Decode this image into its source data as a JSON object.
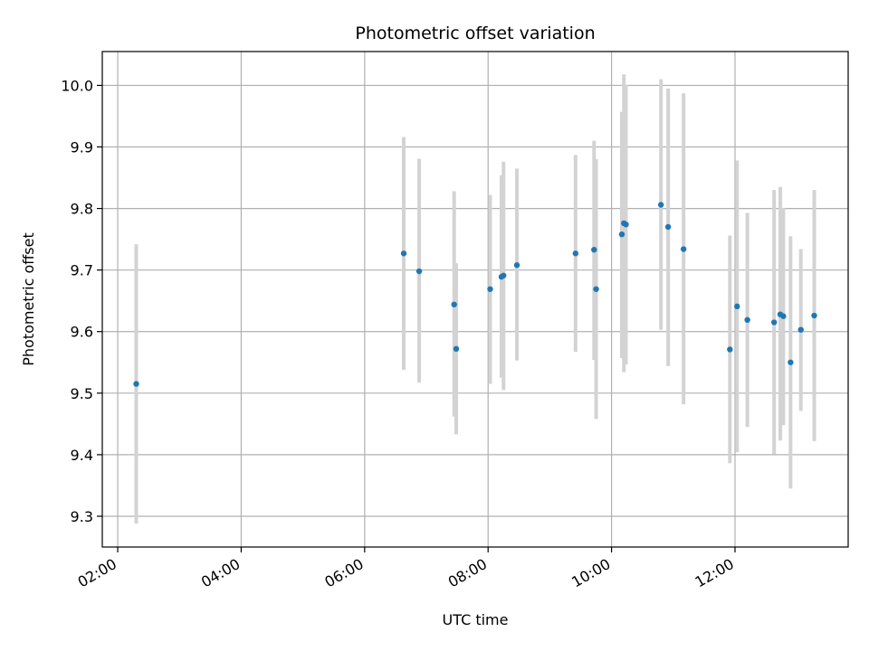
{
  "chart_data": {
    "type": "scatter",
    "title": "Photometric offset variation",
    "xlabel": "UTC time",
    "ylabel": "Photometric offset",
    "x_tick_labels": [
      "02:00",
      "04:00",
      "06:00",
      "08:00",
      "10:00",
      "12:00"
    ],
    "y_tick_labels": [
      "9.3",
      "9.4",
      "9.5",
      "9.6",
      "9.7",
      "9.8",
      "9.9",
      "10.0"
    ],
    "xlim": [
      "01:45",
      "13:50"
    ],
    "ylim": [
      9.25,
      10.055
    ],
    "grid": true,
    "legend": "none",
    "colors": {
      "points": "#1f77b4",
      "errorbars": "#d3d3d3",
      "grid": "#b0b0b0"
    },
    "points": [
      {
        "x": "02:18",
        "y": 9.515,
        "ymin": 9.288,
        "ymax": 9.742
      },
      {
        "x": "06:38",
        "y": 9.727,
        "ymin": 9.538,
        "ymax": 9.916
      },
      {
        "x": "06:53",
        "y": 9.698,
        "ymin": 9.517,
        "ymax": 9.881
      },
      {
        "x": "07:27",
        "y": 9.644,
        "ymin": 9.462,
        "ymax": 9.828
      },
      {
        "x": "07:29",
        "y": 9.572,
        "ymin": 9.433,
        "ymax": 9.711
      },
      {
        "x": "08:02",
        "y": 9.669,
        "ymin": 9.515,
        "ymax": 9.822
      },
      {
        "x": "08:13",
        "y": 9.689,
        "ymin": 9.525,
        "ymax": 9.854
      },
      {
        "x": "08:15",
        "y": 9.691,
        "ymin": 9.505,
        "ymax": 9.876
      },
      {
        "x": "08:28",
        "y": 9.708,
        "ymin": 9.553,
        "ymax": 9.865
      },
      {
        "x": "09:25",
        "y": 9.727,
        "ymin": 9.567,
        "ymax": 9.887
      },
      {
        "x": "09:43",
        "y": 9.733,
        "ymin": 9.554,
        "ymax": 9.91
      },
      {
        "x": "09:45",
        "y": 9.669,
        "ymin": 9.458,
        "ymax": 9.88
      },
      {
        "x": "10:10",
        "y": 9.758,
        "ymin": 9.557,
        "ymax": 9.957
      },
      {
        "x": "10:12",
        "y": 9.776,
        "ymin": 9.534,
        "ymax": 10.018
      },
      {
        "x": "10:14",
        "y": 9.774,
        "ymin": 9.547,
        "ymax": 10.001
      },
      {
        "x": "10:48",
        "y": 9.806,
        "ymin": 9.603,
        "ymax": 10.01
      },
      {
        "x": "10:55",
        "y": 9.77,
        "ymin": 9.544,
        "ymax": 9.995
      },
      {
        "x": "11:10",
        "y": 9.734,
        "ymin": 9.482,
        "ymax": 9.987
      },
      {
        "x": "11:55",
        "y": 9.571,
        "ymin": 9.386,
        "ymax": 9.756
      },
      {
        "x": "12:02",
        "y": 9.641,
        "ymin": 9.404,
        "ymax": 9.878
      },
      {
        "x": "12:12",
        "y": 9.619,
        "ymin": 9.445,
        "ymax": 9.793
      },
      {
        "x": "12:38",
        "y": 9.615,
        "ymin": 9.401,
        "ymax": 9.83
      },
      {
        "x": "12:44",
        "y": 9.628,
        "ymin": 9.423,
        "ymax": 9.835
      },
      {
        "x": "12:47",
        "y": 9.625,
        "ymin": 9.448,
        "ymax": 9.801
      },
      {
        "x": "12:54",
        "y": 9.55,
        "ymin": 9.345,
        "ymax": 9.755
      },
      {
        "x": "13:04",
        "y": 9.603,
        "ymin": 9.471,
        "ymax": 9.734
      },
      {
        "x": "13:17",
        "y": 9.626,
        "ymin": 9.422,
        "ymax": 9.83
      }
    ]
  }
}
